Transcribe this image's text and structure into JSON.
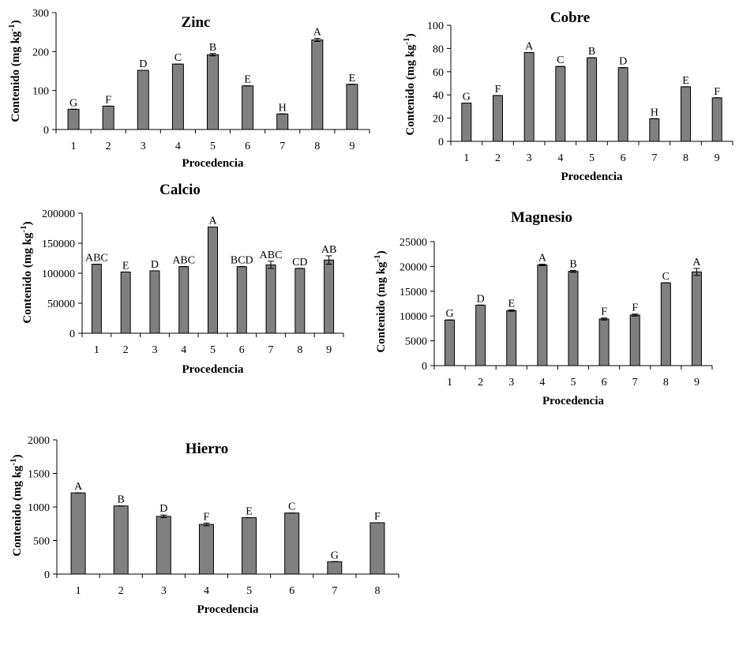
{
  "chart_data": [
    {
      "type": "bar",
      "title": "Zinc",
      "xlabel": "Procedencia",
      "ylabel": "Contenido (mg kg-1)",
      "ylim": [
        0,
        300
      ],
      "yticks": [
        0,
        100,
        200,
        300
      ],
      "categories": [
        "1",
        "2",
        "3",
        "4",
        "5",
        "6",
        "7",
        "8",
        "9"
      ],
      "values": [
        52,
        60,
        152,
        168,
        192,
        112,
        40,
        230,
        116
      ],
      "errors": [
        0,
        0,
        0,
        0,
        3,
        0,
        0,
        4,
        0
      ],
      "letters": [
        "G",
        "F",
        "D",
        "C",
        "B",
        "E",
        "H",
        "A",
        "E"
      ]
    },
    {
      "type": "bar",
      "title": "Cobre",
      "xlabel": "Procedencia",
      "ylabel": "Contenido (mg kg-1)",
      "ylim": [
        0,
        100
      ],
      "yticks": [
        0,
        20,
        40,
        60,
        80,
        100
      ],
      "categories": [
        "1",
        "2",
        "3",
        "4",
        "5",
        "6",
        "7",
        "8",
        "9"
      ],
      "values": [
        33,
        39.5,
        76.5,
        64.5,
        72,
        63.5,
        19.5,
        47,
        37.5
      ],
      "errors": [
        0,
        0,
        0,
        0,
        0,
        0,
        0,
        0,
        0
      ],
      "letters": [
        "G",
        "F",
        "A",
        "C",
        "B",
        "D",
        "H",
        "E",
        "F"
      ]
    },
    {
      "type": "bar",
      "title": "Calcio",
      "xlabel": "Procedencia",
      "ylabel": "Contenido (mg kg-1)",
      "ylim": [
        0,
        200000
      ],
      "yticks": [
        0,
        50000,
        100000,
        150000,
        200000
      ],
      "categories": [
        "1",
        "2",
        "3",
        "4",
        "5",
        "6",
        "7",
        "8",
        "9"
      ],
      "values": [
        115000,
        102000,
        104000,
        111000,
        177000,
        111000,
        114000,
        108000,
        122000
      ],
      "errors": [
        0,
        0,
        0,
        0,
        0,
        0,
        6000,
        0,
        7000
      ],
      "letters": [
        "ABC",
        "E",
        "D",
        "ABC",
        "A",
        "BCD",
        "ABC",
        "CD",
        "AB"
      ]
    },
    {
      "type": "bar",
      "title": "Magnesio",
      "xlabel": "Procedencia",
      "ylabel": "Contenido (mg kg-1)",
      "ylim": [
        0,
        25000
      ],
      "yticks": [
        0,
        5000,
        10000,
        15000,
        20000,
        25000
      ],
      "categories": [
        "1",
        "2",
        "3",
        "4",
        "5",
        "6",
        "7",
        "8",
        "9"
      ],
      "values": [
        9200,
        12200,
        11100,
        20300,
        19000,
        9400,
        10200,
        16700,
        18900
      ],
      "errors": [
        0,
        0,
        150,
        150,
        200,
        200,
        200,
        0,
        700
      ],
      "letters": [
        "G",
        "D",
        "E",
        "A",
        "B",
        "F",
        "F",
        "C",
        "A"
      ]
    },
    {
      "type": "bar",
      "title": "Hierro",
      "xlabel": "Procedencia",
      "ylabel": "Contenido (mg kg-1)",
      "ylim": [
        0,
        2000
      ],
      "yticks": [
        0,
        500,
        1000,
        1500,
        2000
      ],
      "categories": [
        "1",
        "2",
        "3",
        "4",
        "5",
        "6",
        "7",
        "8"
      ],
      "values": [
        1210,
        1015,
        860,
        740,
        840,
        910,
        185,
        765
      ],
      "errors": [
        0,
        0,
        20,
        20,
        0,
        0,
        0,
        0
      ],
      "letters": [
        "A",
        "B",
        "D",
        "F",
        "E",
        "C",
        "G",
        "F"
      ]
    }
  ]
}
